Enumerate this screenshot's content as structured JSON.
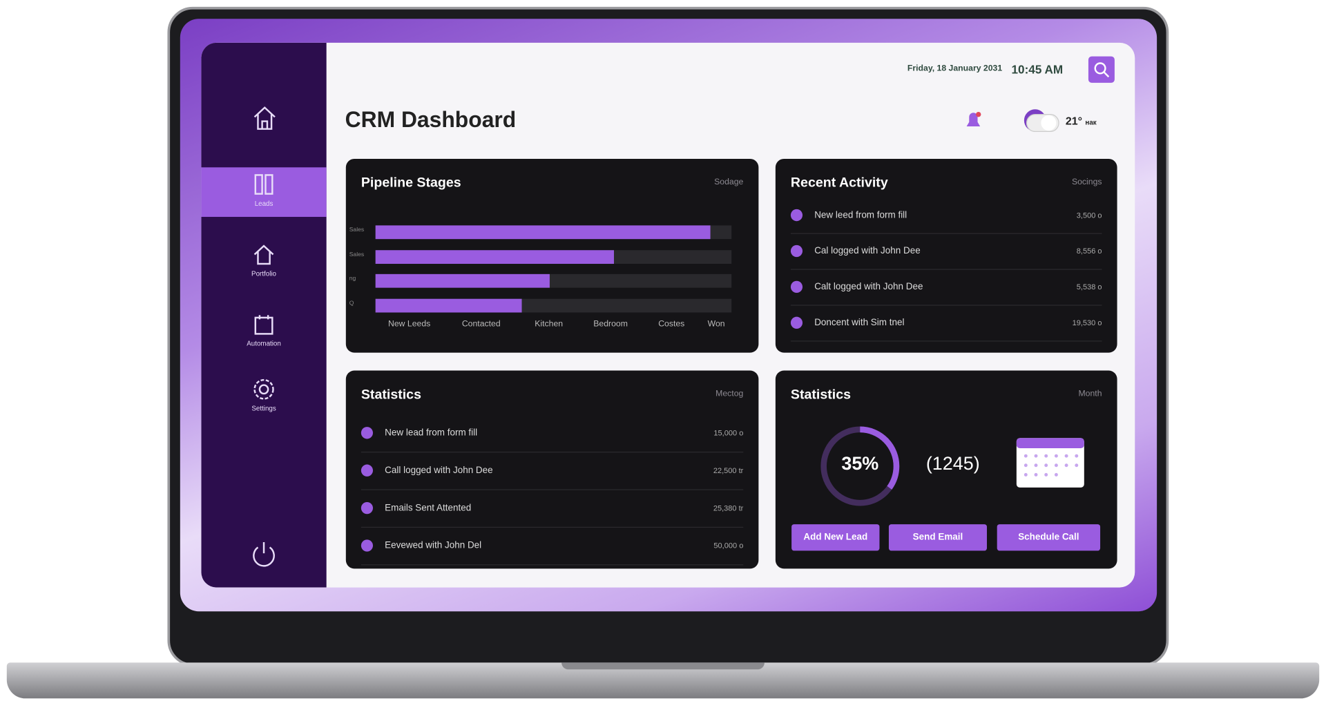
{
  "header": {
    "date": "Friday, 18 January 2031",
    "time": "10:45 AM",
    "title": "CRM Dashboard",
    "temperature": "21°",
    "weather_unit": "нак"
  },
  "sidebar": {
    "items": [
      "Leads",
      "Portfolio",
      "Automation",
      "Settings"
    ]
  },
  "pipeline": {
    "title": "Pipeline Stages",
    "filter": "Sodage",
    "row_labels": [
      "Sales",
      "Sales",
      "ng",
      "Q"
    ],
    "values": [
      94,
      67,
      49,
      41
    ],
    "xlim": [
      0,
      100
    ],
    "stages": [
      "New Leeds",
      "Contacted",
      "Kitchen",
      "Bedroom",
      "Costes",
      "Won"
    ],
    "color": "#9a5ce0"
  },
  "recent_activity": {
    "title": "Recent Activity",
    "filter": "Socings",
    "items": [
      {
        "text": "New leed from form fill",
        "value": "3,500 o"
      },
      {
        "text": "Cal logged with John Dee",
        "value": "8,556 o"
      },
      {
        "text": "Calt logged with John Dee",
        "value": "5,538 o"
      },
      {
        "text": "Doncent with Sim tnel",
        "value": "19,530 o"
      }
    ]
  },
  "statistics": {
    "title": "Statistics",
    "filter": "Mectog",
    "items": [
      {
        "text": "New lead from form fill",
        "value": "15,000 o"
      },
      {
        "text": "Call logged with John Dee",
        "value": "22,500 tr"
      },
      {
        "text": "Emails Sent Attented",
        "value": "25,380 tr"
      },
      {
        "text": "Eevewed with John Del",
        "value": "50,000 o"
      }
    ]
  },
  "statistics_summary": {
    "title": "Statistics",
    "filter": "Month",
    "percent": {
      "value": 35,
      "label": "35%"
    },
    "count": "(1245)",
    "buttons": [
      "Add New Lead",
      "Send Email",
      "Schedule Call"
    ]
  }
}
